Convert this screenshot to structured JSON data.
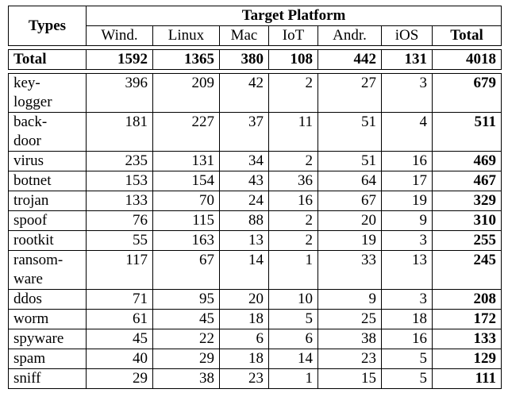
{
  "header": {
    "types_label": "Types",
    "group_label": "Target Platform",
    "columns": [
      "Wind.",
      "Linux",
      "Mac",
      "IoT",
      "Andr.",
      "iOS",
      "Total"
    ]
  },
  "total_row": {
    "label": "Total",
    "values": [
      "1592",
      "1365",
      "380",
      "108",
      "442",
      "131",
      "4018"
    ]
  },
  "rows": [
    {
      "type_lines": [
        "key-",
        "logger"
      ],
      "values": [
        "396",
        "209",
        "42",
        "2",
        "27",
        "3",
        "679"
      ]
    },
    {
      "type_lines": [
        "back-",
        "door"
      ],
      "values": [
        "181",
        "227",
        "37",
        "11",
        "51",
        "4",
        "511"
      ]
    },
    {
      "type_lines": [
        "virus"
      ],
      "values": [
        "235",
        "131",
        "34",
        "2",
        "51",
        "16",
        "469"
      ]
    },
    {
      "type_lines": [
        "botnet"
      ],
      "values": [
        "153",
        "154",
        "43",
        "36",
        "64",
        "17",
        "467"
      ]
    },
    {
      "type_lines": [
        "trojan"
      ],
      "values": [
        "133",
        "70",
        "24",
        "16",
        "67",
        "19",
        "329"
      ]
    },
    {
      "type_lines": [
        "spoof"
      ],
      "values": [
        "76",
        "115",
        "88",
        "2",
        "20",
        "9",
        "310"
      ]
    },
    {
      "type_lines": [
        "rootkit"
      ],
      "values": [
        "55",
        "163",
        "13",
        "2",
        "19",
        "3",
        "255"
      ]
    },
    {
      "type_lines": [
        "ransom-",
        "ware"
      ],
      "values": [
        "117",
        "67",
        "14",
        "1",
        "33",
        "13",
        "245"
      ]
    },
    {
      "type_lines": [
        "ddos"
      ],
      "values": [
        "71",
        "95",
        "20",
        "10",
        "9",
        "3",
        "208"
      ]
    },
    {
      "type_lines": [
        "worm"
      ],
      "values": [
        "61",
        "45",
        "18",
        "5",
        "25",
        "18",
        "172"
      ]
    },
    {
      "type_lines": [
        "spyware"
      ],
      "values": [
        "45",
        "22",
        "6",
        "6",
        "38",
        "16",
        "133"
      ]
    },
    {
      "type_lines": [
        "spam"
      ],
      "values": [
        "40",
        "29",
        "18",
        "14",
        "23",
        "5",
        "129"
      ]
    },
    {
      "type_lines": [
        "sniff"
      ],
      "values": [
        "29",
        "38",
        "23",
        "1",
        "15",
        "5",
        "111"
      ]
    }
  ]
}
